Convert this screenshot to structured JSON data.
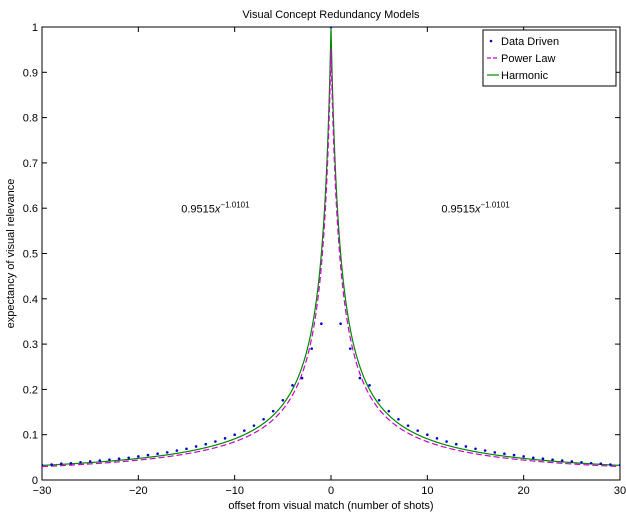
{
  "chart_data": {
    "type": "line",
    "title": "Visual Concept Redundancy Models",
    "xlabel": "offset from visual match (number of shots)",
    "ylabel": "expectancy of visual relevance",
    "xlim": [
      -30,
      30
    ],
    "ylim": [
      0,
      1
    ],
    "xticks": [
      -30,
      -20,
      -10,
      0,
      10,
      20,
      30
    ],
    "yticks": [
      0,
      0.1,
      0.2,
      0.3,
      0.4,
      0.5,
      0.6,
      0.7,
      0.8,
      0.9,
      1
    ],
    "grid": false,
    "legend_position": "top-right",
    "colors": {
      "data_driven": "#0000cc",
      "power_law": "#cc00cc",
      "harmonic": "#008800"
    },
    "annotations": [
      {
        "base": "0.9515",
        "var": "x",
        "exponent": "−1.0101",
        "x": -12,
        "y": 0.59
      },
      {
        "base": "0.9515",
        "var": "x",
        "exponent": "−1.0101",
        "x": 15,
        "y": 0.59
      }
    ],
    "series": [
      {
        "name": "Data Driven",
        "style": "dots",
        "x": [
          -30,
          -29,
          -28,
          -27,
          -26,
          -25,
          -24,
          -23,
          -22,
          -21,
          -20,
          -19,
          -18,
          -17,
          -16,
          -15,
          -14,
          -13,
          -12,
          -11,
          -10,
          -9,
          -8,
          -7,
          -6,
          -5,
          -4,
          -3,
          -2,
          -1,
          0,
          1,
          2,
          3,
          4,
          5,
          6,
          7,
          8,
          9,
          10,
          11,
          12,
          13,
          14,
          15,
          16,
          17,
          18,
          19,
          20,
          21,
          22,
          23,
          24,
          25,
          26,
          27,
          28,
          29,
          30
        ],
        "y": [
          0.033,
          0.034,
          0.036,
          0.037,
          0.039,
          0.041,
          0.043,
          0.045,
          0.047,
          0.049,
          0.052,
          0.055,
          0.058,
          0.061,
          0.065,
          0.069,
          0.074,
          0.079,
          0.085,
          0.092,
          0.1,
          0.109,
          0.12,
          0.134,
          0.152,
          0.176,
          0.209,
          0.225,
          0.29,
          0.345,
          1.0,
          0.345,
          0.29,
          0.225,
          0.209,
          0.176,
          0.152,
          0.134,
          0.12,
          0.109,
          0.1,
          0.092,
          0.085,
          0.079,
          0.074,
          0.069,
          0.065,
          0.061,
          0.058,
          0.055,
          0.052,
          0.049,
          0.047,
          0.045,
          0.043,
          0.041,
          0.039,
          0.037,
          0.036,
          0.034,
          0.033
        ]
      },
      {
        "name": "Power Law",
        "style": "dashed",
        "function": "0.9515 * (1 + |x|)^-1.0101"
      },
      {
        "name": "Harmonic",
        "style": "solid",
        "function": "1 / (1 + |x|)"
      }
    ]
  }
}
